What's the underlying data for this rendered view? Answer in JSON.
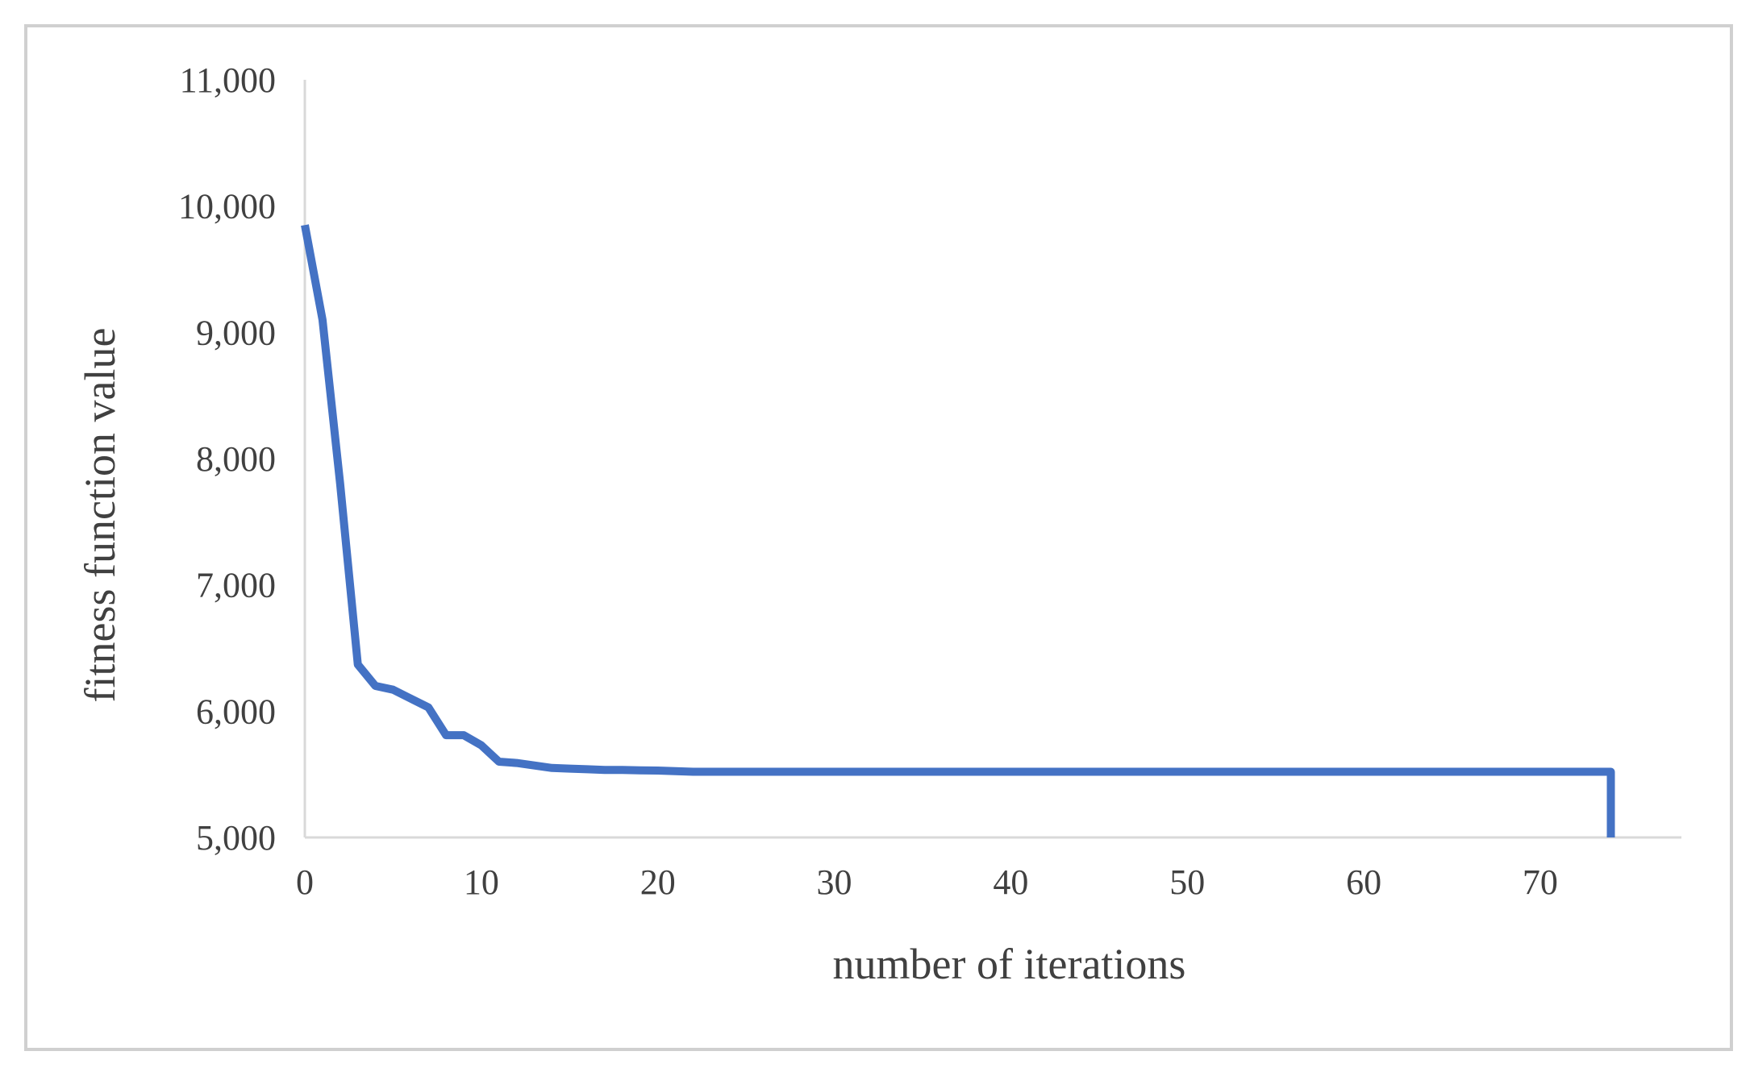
{
  "chart_data": {
    "type": "line",
    "xlabel": "number of iterations",
    "ylabel": "fitness function value",
    "xlim": [
      0,
      78
    ],
    "ylim": [
      5000,
      11000
    ],
    "x_ticks": [
      0,
      10,
      20,
      30,
      40,
      50,
      60,
      70
    ],
    "x_tick_labels": [
      "0",
      "10",
      "20",
      "30",
      "40",
      "50",
      "60",
      "70"
    ],
    "y_ticks": [
      5000,
      6000,
      7000,
      8000,
      9000,
      10000,
      11000
    ],
    "y_tick_labels": [
      "5,000",
      "6,000",
      "7,000",
      "8,000",
      "9,000",
      "10,000",
      "11,000"
    ],
    "grid": false,
    "legend": "none",
    "line_color": "#4472C4",
    "series": [
      {
        "x": [
          0,
          1,
          2,
          3,
          4,
          5,
          6,
          7,
          8,
          9,
          10,
          11,
          12,
          13,
          14,
          15,
          16,
          17,
          18,
          19,
          20,
          22,
          25,
          30,
          40,
          50,
          60,
          70,
          74,
          74
        ],
        "y": [
          9850,
          9100,
          7800,
          6370,
          6200,
          6170,
          6100,
          6030,
          5810,
          5810,
          5730,
          5600,
          5590,
          5570,
          5550,
          5545,
          5540,
          5535,
          5535,
          5532,
          5530,
          5520,
          5520,
          5520,
          5520,
          5520,
          5520,
          5520,
          5520,
          5000
        ]
      }
    ]
  }
}
